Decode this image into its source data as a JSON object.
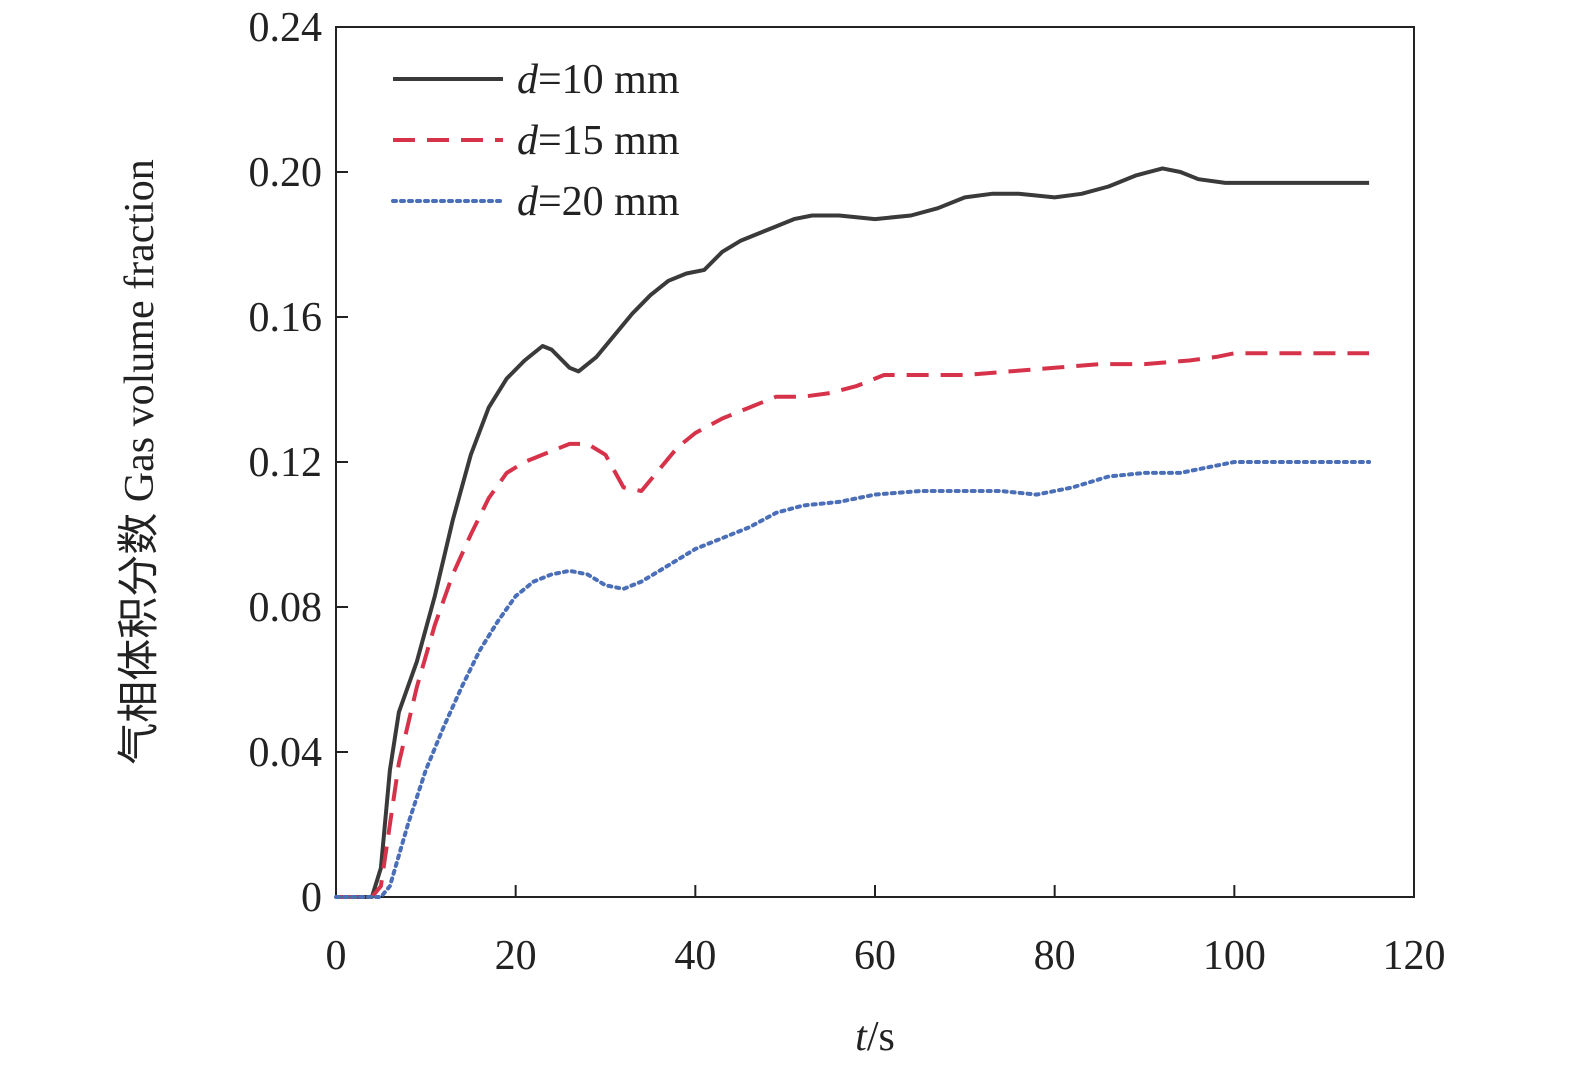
{
  "chart_data": {
    "type": "line",
    "title": "",
    "xlabel": {
      "var": "t",
      "unit": "/s"
    },
    "ylabel": "气相体积分数 Gas volume fraction",
    "xlim": [
      0,
      120
    ],
    "ylim": [
      0,
      0.24
    ],
    "xticks": [
      "0",
      "20",
      "40",
      "60",
      "80",
      "100",
      "120"
    ],
    "yticks": [
      "0",
      "0.04",
      "0.08",
      "0.12",
      "0.16",
      "0.20",
      "0.24"
    ],
    "legend_position": "top-left",
    "series": [
      {
        "name": "d=10 mm",
        "legend_var": "d",
        "legend_rest": "=10 mm",
        "color": "#3a3a3a",
        "style": "solid",
        "points": [
          [
            0,
            0
          ],
          [
            4,
            0
          ],
          [
            5,
            0.008
          ],
          [
            6,
            0.035
          ],
          [
            7,
            0.051
          ],
          [
            9,
            0.065
          ],
          [
            11,
            0.083
          ],
          [
            13,
            0.104
          ],
          [
            15,
            0.122
          ],
          [
            17,
            0.135
          ],
          [
            19,
            0.143
          ],
          [
            21,
            0.148
          ],
          [
            23,
            0.152
          ],
          [
            24,
            0.151
          ],
          [
            26,
            0.146
          ],
          [
            27,
            0.145
          ],
          [
            29,
            0.149
          ],
          [
            31,
            0.155
          ],
          [
            33,
            0.161
          ],
          [
            35,
            0.166
          ],
          [
            37,
            0.17
          ],
          [
            39,
            0.172
          ],
          [
            41,
            0.173
          ],
          [
            43,
            0.178
          ],
          [
            45,
            0.181
          ],
          [
            47,
            0.183
          ],
          [
            49,
            0.185
          ],
          [
            51,
            0.187
          ],
          [
            53,
            0.188
          ],
          [
            56,
            0.188
          ],
          [
            60,
            0.187
          ],
          [
            64,
            0.188
          ],
          [
            67,
            0.19
          ],
          [
            70,
            0.193
          ],
          [
            73,
            0.194
          ],
          [
            76,
            0.194
          ],
          [
            80,
            0.193
          ],
          [
            83,
            0.194
          ],
          [
            86,
            0.196
          ],
          [
            89,
            0.199
          ],
          [
            92,
            0.201
          ],
          [
            94,
            0.2
          ],
          [
            96,
            0.198
          ],
          [
            99,
            0.197
          ],
          [
            101,
            0.197
          ],
          [
            105,
            0.197
          ],
          [
            110,
            0.197
          ],
          [
            115,
            0.197
          ]
        ]
      },
      {
        "name": "d=15 mm",
        "legend_var": "d",
        "legend_rest": "=15 mm",
        "color": "#d6334a",
        "style": "dashed",
        "points": [
          [
            0,
            0
          ],
          [
            4,
            0
          ],
          [
            5,
            0.003
          ],
          [
            6,
            0.02
          ],
          [
            7,
            0.037
          ],
          [
            9,
            0.058
          ],
          [
            11,
            0.075
          ],
          [
            13,
            0.089
          ],
          [
            15,
            0.1
          ],
          [
            17,
            0.11
          ],
          [
            19,
            0.117
          ],
          [
            21,
            0.12
          ],
          [
            24,
            0.123
          ],
          [
            26,
            0.125
          ],
          [
            28,
            0.125
          ],
          [
            30,
            0.122
          ],
          [
            32,
            0.113
          ],
          [
            34,
            0.112
          ],
          [
            36,
            0.118
          ],
          [
            38,
            0.124
          ],
          [
            40,
            0.128
          ],
          [
            43,
            0.132
          ],
          [
            46,
            0.135
          ],
          [
            49,
            0.138
          ],
          [
            52,
            0.138
          ],
          [
            55,
            0.139
          ],
          [
            58,
            0.141
          ],
          [
            61,
            0.144
          ],
          [
            65,
            0.144
          ],
          [
            70,
            0.144
          ],
          [
            75,
            0.145
          ],
          [
            80,
            0.146
          ],
          [
            85,
            0.147
          ],
          [
            90,
            0.147
          ],
          [
            95,
            0.148
          ],
          [
            98,
            0.149
          ],
          [
            100,
            0.15
          ],
          [
            105,
            0.15
          ],
          [
            110,
            0.15
          ],
          [
            115,
            0.15
          ]
        ]
      },
      {
        "name": "d=20 mm",
        "legend_var": "d",
        "legend_rest": "=20 mm",
        "color": "#4a6fb8",
        "style": "dotted",
        "points": [
          [
            0,
            0
          ],
          [
            5,
            0
          ],
          [
            6,
            0.003
          ],
          [
            8,
            0.02
          ],
          [
            10,
            0.035
          ],
          [
            12,
            0.047
          ],
          [
            14,
            0.058
          ],
          [
            16,
            0.068
          ],
          [
            18,
            0.076
          ],
          [
            20,
            0.083
          ],
          [
            22,
            0.087
          ],
          [
            24,
            0.089
          ],
          [
            26,
            0.09
          ],
          [
            28,
            0.089
          ],
          [
            30,
            0.086
          ],
          [
            32,
            0.085
          ],
          [
            34,
            0.087
          ],
          [
            36,
            0.09
          ],
          [
            38,
            0.093
          ],
          [
            40,
            0.096
          ],
          [
            43,
            0.099
          ],
          [
            46,
            0.102
          ],
          [
            49,
            0.106
          ],
          [
            52,
            0.108
          ],
          [
            56,
            0.109
          ],
          [
            60,
            0.111
          ],
          [
            65,
            0.112
          ],
          [
            70,
            0.112
          ],
          [
            74,
            0.112
          ],
          [
            78,
            0.111
          ],
          [
            82,
            0.113
          ],
          [
            86,
            0.116
          ],
          [
            90,
            0.117
          ],
          [
            94,
            0.117
          ],
          [
            98,
            0.119
          ],
          [
            100,
            0.12
          ],
          [
            105,
            0.12
          ],
          [
            110,
            0.12
          ],
          [
            115,
            0.12
          ]
        ]
      }
    ]
  }
}
